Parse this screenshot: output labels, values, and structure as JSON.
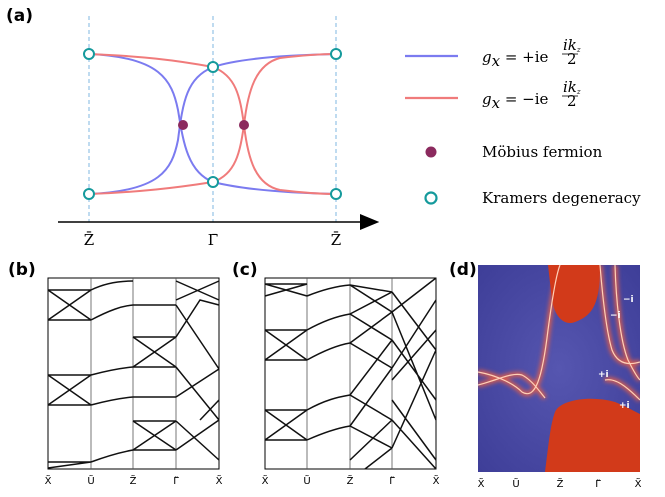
{
  "panels": {
    "a": {
      "label": "(a)"
    },
    "b": {
      "label": "(b)"
    },
    "c": {
      "label": "(c)"
    },
    "d": {
      "label": "(d)"
    }
  },
  "panel_a": {
    "axis_ticks": [
      "Z̄",
      "Γ̄",
      "Z̄"
    ],
    "legend": [
      {
        "kind": "line",
        "color": "#7b7bf0",
        "label": "g",
        "sub": "x",
        "rest": " = +ie",
        "exp_num": "ik",
        "exp_num_sub": "z",
        "exp_den": "2"
      },
      {
        "kind": "line",
        "color": "#f07b7b",
        "label": "g",
        "sub": "x",
        "rest": " = −ie",
        "exp_num": "ik",
        "exp_num_sub": "z",
        "exp_den": "2"
      },
      {
        "kind": "dot",
        "color": "#8b2a5e",
        "label": "Möbius fermion"
      },
      {
        "kind": "circle",
        "color": "#159a9c",
        "label": "Kramers degeneracy"
      }
    ]
  },
  "panel_b": {
    "ticks": [
      "X̃",
      "Ũ",
      "Z̃",
      "Γ̃",
      "X̃"
    ]
  },
  "panel_c": {
    "ticks": [
      "X̃",
      "Ũ",
      "Z̃",
      "Γ̃",
      "X̃"
    ]
  },
  "panel_d": {
    "ticks": [
      "X̃",
      "Ũ",
      "Z̃",
      "Γ̃",
      "X̃"
    ],
    "labels": [
      "−i",
      "−i",
      "+i",
      "+i"
    ],
    "colors": {
      "background": "#4a4aa8",
      "surface": "#d23a1a",
      "glow": "#f06040"
    }
  }
}
